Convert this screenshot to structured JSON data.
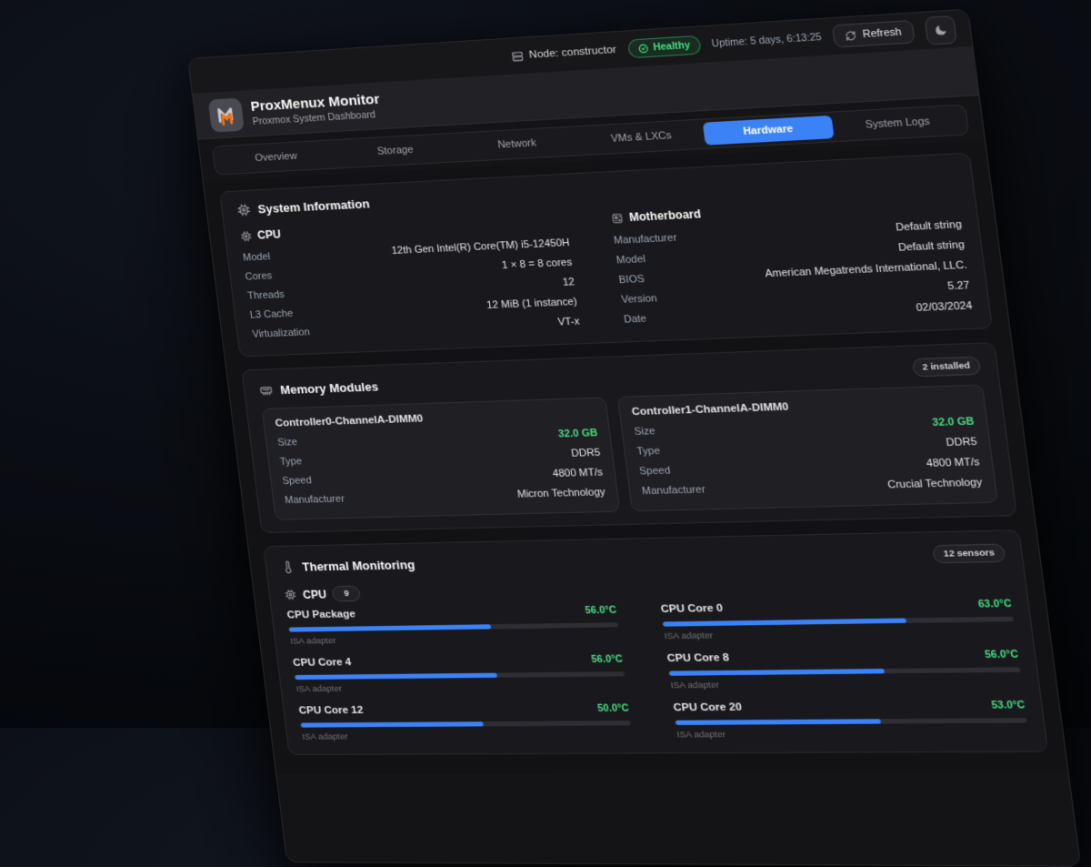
{
  "toolbar": {
    "node_label": "Node: constructor",
    "health_label": "Healthy",
    "uptime_label": "Uptime: 5 days, 6:13:25",
    "refresh_label": "Refresh"
  },
  "header": {
    "title": "ProxMenux Monitor",
    "subtitle": "Proxmox System Dashboard"
  },
  "tabs": [
    {
      "label": "Overview"
    },
    {
      "label": "Storage"
    },
    {
      "label": "Network"
    },
    {
      "label": "VMs & LXCs"
    },
    {
      "label": "Hardware"
    },
    {
      "label": "System Logs"
    }
  ],
  "sysinfo": {
    "title": "System Information",
    "cpu": {
      "title": "CPU",
      "rows": [
        {
          "label": "Model",
          "value": "12th Gen Intel(R) Core(TM) i5-12450H"
        },
        {
          "label": "Cores",
          "value": "1 × 8 = 8 cores"
        },
        {
          "label": "Threads",
          "value": "12"
        },
        {
          "label": "L3 Cache",
          "value": "12 MiB (1 instance)"
        },
        {
          "label": "Virtualization",
          "value": "VT-x"
        }
      ]
    },
    "motherboard": {
      "title": "Motherboard",
      "rows": [
        {
          "label": "Manufacturer",
          "value": "Default string"
        },
        {
          "label": "Model",
          "value": "Default string"
        },
        {
          "label": "BIOS",
          "value": "American Megatrends International, LLC."
        },
        {
          "label": "Version",
          "value": "5.27"
        },
        {
          "label": "Date",
          "value": "02/03/2024"
        }
      ]
    }
  },
  "memory": {
    "title": "Memory Modules",
    "badge": "2 installed",
    "modules": [
      {
        "name": "Controller0-ChannelA-DIMM0",
        "rows": [
          {
            "label": "Size",
            "value": "32.0 GB"
          },
          {
            "label": "Type",
            "value": "DDR5"
          },
          {
            "label": "Speed",
            "value": "4800 MT/s"
          },
          {
            "label": "Manufacturer",
            "value": "Micron Technology"
          }
        ]
      },
      {
        "name": "Controller1-ChannelA-DIMM0",
        "rows": [
          {
            "label": "Size",
            "value": "32.0 GB"
          },
          {
            "label": "Type",
            "value": "DDR5"
          },
          {
            "label": "Speed",
            "value": "4800 MT/s"
          },
          {
            "label": "Manufacturer",
            "value": "Crucial Technology"
          }
        ]
      }
    ]
  },
  "thermal": {
    "title": "Thermal Monitoring",
    "badge": "12 sensors",
    "group_title": "CPU",
    "group_count": "9",
    "sensors": [
      {
        "name": "CPU Package",
        "temp": "56.0°C",
        "adapter": "ISA adapter",
        "pct": 62
      },
      {
        "name": "CPU Core 0",
        "temp": "63.0°C",
        "adapter": "ISA adapter",
        "pct": 70
      },
      {
        "name": "CPU Core 4",
        "temp": "56.0°C",
        "adapter": "ISA adapter",
        "pct": 62
      },
      {
        "name": "CPU Core 8",
        "temp": "56.0°C",
        "adapter": "ISA adapter",
        "pct": 62
      },
      {
        "name": "CPU Core 12",
        "temp": "50.0°C",
        "adapter": "ISA adapter",
        "pct": 56
      },
      {
        "name": "CPU Core 20",
        "temp": "53.0°C",
        "adapter": "ISA adapter",
        "pct": 59
      }
    ]
  },
  "colors": {
    "accent": "#3b82f6",
    "ok_green": "#4ade80"
  }
}
